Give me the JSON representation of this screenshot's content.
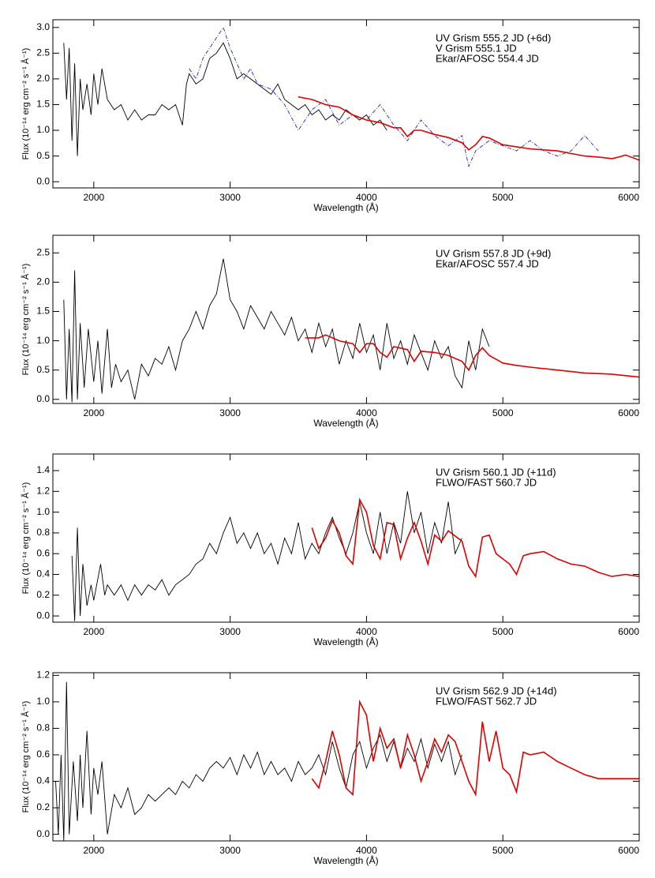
{
  "chart_data": [
    {
      "type": "line",
      "xlabel": "Wavelength (Å)",
      "ylabel": "Flux (10⁻¹⁴ erg cm⁻² s⁻¹ Å⁻¹)",
      "xlim": [
        1700,
        6000
      ],
      "xticks": [
        2000,
        3000,
        4000,
        5000,
        6000
      ],
      "ylim": [
        -0.12,
        3.15
      ],
      "yticks": [
        {
          "value": 0,
          "label": "0.0"
        },
        0.5,
        {
          "value": 1,
          "label": "1.0"
        },
        1.5,
        {
          "value": 2,
          "label": "2.0"
        },
        2.5,
        {
          "value": 3,
          "label": "3.0"
        }
      ],
      "series": [
        {
          "name": "UV Grism 555.2 JD (+6d)",
          "color": "#000000",
          "linestyle": "solid",
          "x": [
            1780,
            1800,
            1820,
            1840,
            1860,
            1880,
            1900,
            1920,
            1950,
            1980,
            2000,
            2030,
            2060,
            2100,
            2150,
            2200,
            2250,
            2300,
            2350,
            2400,
            2450,
            2500,
            2550,
            2600,
            2650,
            2680,
            2700,
            2750,
            2800,
            2850,
            2900,
            2950,
            3000,
            3050,
            3100,
            3150,
            3200,
            3250,
            3300,
            3350,
            3400,
            3450,
            3500,
            3550,
            3600,
            3650,
            3700,
            3750,
            3800,
            3850,
            3900,
            3950,
            4000,
            4050,
            4100,
            4150
          ],
          "values": [
            2.7,
            1.6,
            2.6,
            0.8,
            2.3,
            0.5,
            2.0,
            1.4,
            1.9,
            1.3,
            2.1,
            1.5,
            2.2,
            1.6,
            1.4,
            1.5,
            1.2,
            1.4,
            1.2,
            1.3,
            1.3,
            1.5,
            1.4,
            1.5,
            1.1,
            1.9,
            2.1,
            1.9,
            2.0,
            2.4,
            2.5,
            2.7,
            2.4,
            2.0,
            2.1,
            2.0,
            1.9,
            1.8,
            1.7,
            1.9,
            1.6,
            1.5,
            1.4,
            1.5,
            1.3,
            1.4,
            1.2,
            1.3,
            1.2,
            1.4,
            1.3,
            1.2,
            1.3,
            1.1,
            1.2,
            1.0
          ]
        },
        {
          "name": "V Grism 555.1 JD",
          "color": "#2020d0",
          "linestyle": "dashed",
          "x": [
            2700,
            2750,
            2800,
            2850,
            2900,
            2950,
            3000,
            3050,
            3100,
            3150,
            3200,
            3300,
            3400,
            3500,
            3600,
            3700,
            3800,
            3900,
            4000,
            4100,
            4200,
            4300,
            4400,
            4500,
            4600,
            4700,
            4750,
            4800,
            4900,
            5000,
            5100,
            5200,
            5300,
            5400,
            5500,
            5600,
            5700
          ],
          "values": [
            2.2,
            2.0,
            2.4,
            2.6,
            2.8,
            3.0,
            2.6,
            2.3,
            2.0,
            2.2,
            1.9,
            1.8,
            1.5,
            1.0,
            1.4,
            1.6,
            1.1,
            1.3,
            1.2,
            1.5,
            1.1,
            0.8,
            1.2,
            0.9,
            0.7,
            0.9,
            0.3,
            0.6,
            0.8,
            0.7,
            0.6,
            0.8,
            0.6,
            0.5,
            0.6,
            0.9,
            0.6
          ]
        },
        {
          "name": "Ekar/AFOSC 554.4 JD",
          "color": "#e00000",
          "linestyle": "solid",
          "x": [
            3500,
            3600,
            3700,
            3800,
            3900,
            4000,
            4100,
            4200,
            4250,
            4300,
            4350,
            4400,
            4500,
            4600,
            4700,
            4750,
            4800,
            4850,
            4900,
            5000,
            5100,
            5200,
            5300,
            5400,
            5500,
            5600,
            5700,
            5800,
            5850,
            5900,
            6000
          ],
          "values": [
            1.65,
            1.6,
            1.5,
            1.45,
            1.3,
            1.2,
            1.15,
            1.05,
            1.05,
            0.88,
            1.0,
            1.0,
            0.92,
            0.86,
            0.76,
            0.62,
            0.72,
            0.88,
            0.85,
            0.72,
            0.68,
            0.64,
            0.62,
            0.6,
            0.55,
            0.5,
            0.48,
            0.45,
            0.48,
            0.52,
            0.42
          ]
        }
      ]
    },
    {
      "type": "line",
      "xlabel": "Wavelength (Å)",
      "ylabel": "Flux (10⁻¹⁴ erg cm⁻² s⁻¹ Å⁻¹)",
      "xlim": [
        1700,
        6000
      ],
      "xticks": [
        2000,
        3000,
        4000,
        5000,
        6000
      ],
      "ylim": [
        -0.07,
        2.8
      ],
      "yticks": [
        {
          "value": 0,
          "label": "0.0"
        },
        0.5,
        {
          "value": 1,
          "label": "1.0"
        },
        1.5,
        {
          "value": 2,
          "label": "2.0"
        },
        2.5
      ],
      "series": [
        {
          "name": "UV Grism 557.8 JD (+9d)",
          "color": "#000000",
          "linestyle": "solid",
          "x": [
            1780,
            1800,
            1820,
            1840,
            1860,
            1880,
            1900,
            1930,
            1960,
            2000,
            2030,
            2060,
            2100,
            2130,
            2160,
            2200,
            2250,
            2300,
            2350,
            2400,
            2450,
            2500,
            2550,
            2600,
            2650,
            2700,
            2750,
            2800,
            2850,
            2900,
            2950,
            3000,
            3050,
            3100,
            3150,
            3200,
            3250,
            3300,
            3350,
            3400,
            3450,
            3500,
            3550,
            3600,
            3650,
            3700,
            3750,
            3800,
            3850,
            3900,
            3950,
            4000,
            4050,
            4100,
            4150,
            4200,
            4250,
            4300,
            4350,
            4400,
            4450,
            4500,
            4550,
            4600,
            4650,
            4700,
            4750,
            4800,
            4850,
            4900
          ],
          "values": [
            1.7,
            0.0,
            1.2,
            -0.05,
            2.2,
            0.0,
            1.3,
            0.2,
            1.2,
            0.3,
            1.0,
            0.1,
            1.2,
            0.2,
            0.6,
            0.3,
            0.5,
            0.0,
            0.6,
            0.4,
            0.7,
            0.6,
            0.9,
            0.5,
            1.0,
            1.2,
            1.5,
            1.2,
            1.6,
            1.8,
            2.4,
            1.7,
            1.5,
            1.2,
            1.6,
            1.4,
            1.2,
            1.5,
            1.3,
            1.1,
            1.4,
            1.0,
            1.2,
            0.8,
            1.3,
            0.9,
            1.2,
            0.6,
            1.0,
            0.7,
            1.3,
            0.8,
            1.1,
            0.5,
            1.3,
            0.7,
            1.0,
            0.6,
            1.1,
            0.8,
            0.5,
            1.0,
            0.7,
            0.9,
            0.4,
            0.2,
            1.0,
            0.5,
            1.2,
            0.9
          ]
        },
        {
          "name": "Ekar/AFOSC 557.4 JD",
          "color": "#e00000",
          "linestyle": "solid",
          "x": [
            3550,
            3650,
            3700,
            3800,
            3900,
            3950,
            4000,
            4050,
            4100,
            4150,
            4200,
            4300,
            4350,
            4400,
            4500,
            4600,
            4700,
            4750,
            4800,
            4850,
            4900,
            5000,
            5100,
            5200,
            5400,
            5600,
            5800,
            6000
          ],
          "values": [
            1.05,
            1.05,
            1.1,
            1.0,
            0.95,
            0.8,
            0.95,
            0.95,
            0.8,
            0.72,
            0.9,
            0.85,
            0.65,
            0.82,
            0.8,
            0.75,
            0.65,
            0.5,
            0.75,
            0.88,
            0.75,
            0.62,
            0.58,
            0.55,
            0.5,
            0.45,
            0.43,
            0.38
          ]
        }
      ]
    },
    {
      "type": "line",
      "xlabel": "Wavelength (Å)",
      "ylabel": "Flux (10⁻¹⁴ erg cm⁻² s⁻¹ Å⁻¹)",
      "xlim": [
        1700,
        6000
      ],
      "xticks": [
        2000,
        3000,
        4000,
        5000,
        6000
      ],
      "ylim": [
        -0.06,
        1.56
      ],
      "yticks": [
        {
          "value": 0,
          "label": "0.0"
        },
        0.2,
        0.4,
        0.6,
        0.8,
        {
          "value": 1,
          "label": "1.0"
        },
        1.2,
        1.4
      ],
      "series": [
        {
          "name": "UV Grism 560.1 JD (+11d)",
          "color": "#000000",
          "linestyle": "solid",
          "x": [
            1840,
            1860,
            1880,
            1900,
            1920,
            1950,
            1980,
            2000,
            2050,
            2080,
            2100,
            2150,
            2200,
            2250,
            2300,
            2350,
            2400,
            2450,
            2500,
            2550,
            2600,
            2650,
            2700,
            2750,
            2800,
            2850,
            2900,
            2950,
            3000,
            3050,
            3100,
            3150,
            3200,
            3250,
            3300,
            3350,
            3400,
            3450,
            3500,
            3550,
            3600,
            3650,
            3700,
            3750,
            3800,
            3850,
            3900,
            3950,
            4000,
            4050,
            4100,
            4150,
            4200,
            4250,
            4300,
            4350,
            4400,
            4450,
            4500,
            4550,
            4600,
            4650,
            4700
          ],
          "values": [
            0.58,
            -0.05,
            0.85,
            0.0,
            0.5,
            0.1,
            0.3,
            0.15,
            0.5,
            0.2,
            0.3,
            0.2,
            0.3,
            0.15,
            0.3,
            0.2,
            0.3,
            0.25,
            0.35,
            0.2,
            0.3,
            0.35,
            0.4,
            0.5,
            0.55,
            0.7,
            0.6,
            0.8,
            0.95,
            0.7,
            0.8,
            0.65,
            0.8,
            0.6,
            0.7,
            0.5,
            0.75,
            0.6,
            0.9,
            0.55,
            0.7,
            0.6,
            0.8,
            0.95,
            0.75,
            0.6,
            0.8,
            1.1,
            0.8,
            0.6,
            1.0,
            0.6,
            0.9,
            0.7,
            1.2,
            0.8,
            1.0,
            0.6,
            0.9,
            0.7,
            1.1,
            0.6,
            0.75
          ]
        },
        {
          "name": "FLWO/FAST 560.7 JD",
          "color": "#e00000",
          "linestyle": "solid",
          "x": [
            3600,
            3650,
            3700,
            3750,
            3800,
            3850,
            3900,
            3950,
            4000,
            4050,
            4100,
            4150,
            4200,
            4250,
            4300,
            4350,
            4400,
            4450,
            4500,
            4550,
            4600,
            4700,
            4750,
            4800,
            4850,
            4900,
            4950,
            5050,
            5100,
            5150,
            5200,
            5300,
            5400,
            5500,
            5600,
            5700,
            5800,
            5900,
            6000
          ],
          "values": [
            0.85,
            0.65,
            0.75,
            0.92,
            0.8,
            0.58,
            0.5,
            1.12,
            1.0,
            0.68,
            0.55,
            0.9,
            0.88,
            0.55,
            0.75,
            0.9,
            0.72,
            0.5,
            0.78,
            0.72,
            0.82,
            0.72,
            0.48,
            0.38,
            0.76,
            0.78,
            0.6,
            0.5,
            0.4,
            0.58,
            0.6,
            0.62,
            0.55,
            0.5,
            0.48,
            0.42,
            0.38,
            0.4,
            0.38
          ]
        }
      ]
    },
    {
      "type": "line",
      "xlabel": "Wavelength (Å)",
      "ylabel": "Flux (10⁻¹⁴ erg cm⁻² s⁻¹ Å⁻¹)",
      "xlim": [
        1700,
        6000
      ],
      "xticks": [
        2000,
        3000,
        4000,
        5000,
        6000
      ],
      "ylim": [
        -0.05,
        1.22
      ],
      "yticks": [
        {
          "value": 0,
          "label": "0.0"
        },
        0.2,
        0.4,
        0.6,
        0.8,
        {
          "value": 1,
          "label": "1.0"
        },
        1.2
      ],
      "series": [
        {
          "name": "UV Grism 562.9 JD (+14d)",
          "color": "#000000",
          "linestyle": "solid",
          "x": [
            1720,
            1740,
            1760,
            1780,
            1800,
            1820,
            1850,
            1880,
            1900,
            1920,
            1950,
            1980,
            2000,
            2030,
            2060,
            2100,
            2150,
            2200,
            2250,
            2300,
            2350,
            2400,
            2450,
            2500,
            2550,
            2600,
            2650,
            2700,
            2750,
            2800,
            2850,
            2900,
            2950,
            3000,
            3050,
            3100,
            3150,
            3200,
            3250,
            3300,
            3350,
            3400,
            3450,
            3500,
            3550,
            3600,
            3650,
            3700,
            3750,
            3800,
            3850,
            3900,
            3950,
            4000,
            4050,
            4100,
            4150,
            4200,
            4250,
            4300,
            4350,
            4400,
            4450,
            4500,
            4550,
            4600,
            4650,
            4700
          ],
          "values": [
            0.4,
            0.0,
            0.6,
            -0.05,
            1.15,
            0.0,
            0.55,
            0.1,
            0.6,
            0.2,
            0.78,
            0.15,
            0.5,
            0.3,
            0.55,
            0.0,
            0.3,
            0.2,
            0.35,
            0.15,
            0.2,
            0.3,
            0.25,
            0.3,
            0.35,
            0.3,
            0.4,
            0.35,
            0.45,
            0.4,
            0.5,
            0.55,
            0.5,
            0.58,
            0.45,
            0.6,
            0.5,
            0.62,
            0.45,
            0.55,
            0.45,
            0.5,
            0.4,
            0.55,
            0.45,
            0.5,
            0.6,
            0.45,
            0.7,
            0.5,
            0.35,
            0.6,
            0.7,
            0.5,
            0.65,
            0.75,
            0.55,
            0.7,
            0.5,
            0.65,
            0.55,
            0.72,
            0.5,
            0.68,
            0.55,
            0.7,
            0.45,
            0.6
          ]
        },
        {
          "name": "FLWO/FAST 562.7 JD",
          "color": "#e00000",
          "linestyle": "solid",
          "x": [
            3600,
            3650,
            3700,
            3750,
            3800,
            3850,
            3900,
            3950,
            4000,
            4050,
            4100,
            4150,
            4200,
            4250,
            4300,
            4350,
            4400,
            4450,
            4500,
            4550,
            4600,
            4650,
            4700,
            4750,
            4800,
            4850,
            4900,
            4950,
            5000,
            5050,
            5100,
            5150,
            5200,
            5300,
            5400,
            5500,
            5600,
            5700,
            5800,
            5900,
            6000
          ],
          "values": [
            0.42,
            0.35,
            0.55,
            0.78,
            0.6,
            0.35,
            0.3,
            1.0,
            0.9,
            0.55,
            0.8,
            0.65,
            0.72,
            0.5,
            0.75,
            0.6,
            0.4,
            0.55,
            0.72,
            0.62,
            0.75,
            0.7,
            0.55,
            0.4,
            0.3,
            0.85,
            0.55,
            0.78,
            0.5,
            0.45,
            0.32,
            0.62,
            0.6,
            0.62,
            0.55,
            0.5,
            0.45,
            0.42,
            0.42,
            0.42,
            0.42
          ]
        }
      ]
    }
  ]
}
